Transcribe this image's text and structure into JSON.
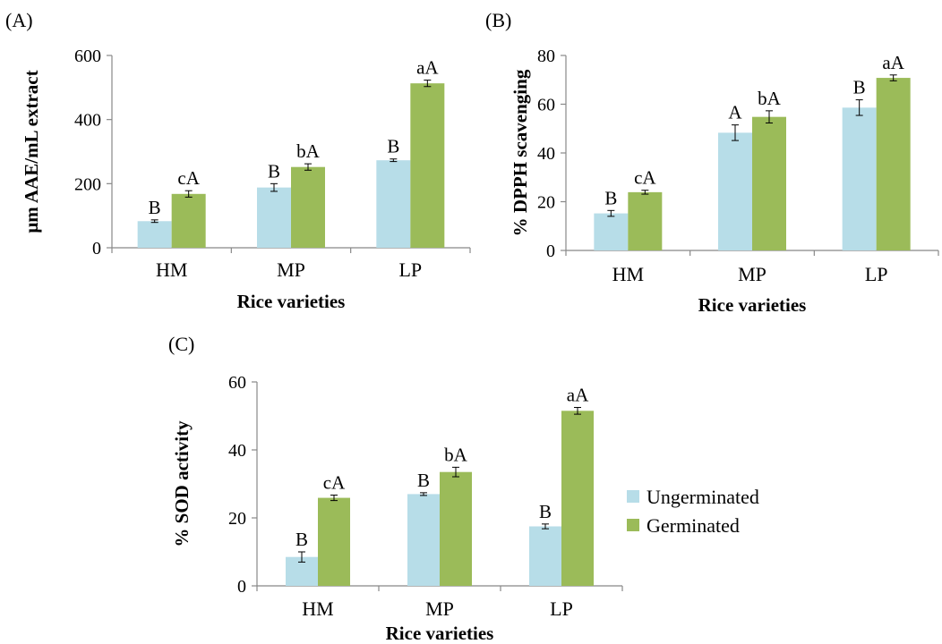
{
  "colors": {
    "ungerminated": "#b7dde8",
    "germinated": "#9bbb59",
    "axis": "#888888",
    "error_bar": "#000000"
  },
  "legend": {
    "items": [
      {
        "label": "Ungerminated",
        "color": "#b7dde8"
      },
      {
        "label": "Germinated",
        "color": "#9bbb59"
      }
    ]
  },
  "chart_data": [
    {
      "type": "bar",
      "panel": "(A)",
      "categories": [
        "HM",
        "MP",
        "LP"
      ],
      "xlabel": "Rice varieties",
      "ylabel": "μm AAE/mL extract",
      "ylim": [
        0,
        600
      ],
      "yticks": [
        0,
        200,
        400,
        600
      ],
      "series": [
        {
          "name": "Ungerminated",
          "values": [
            83,
            188,
            273
          ],
          "errors": [
            4,
            12,
            4
          ],
          "labels": [
            "B",
            "B",
            "B"
          ]
        },
        {
          "name": "Germinated",
          "values": [
            168,
            252,
            513
          ],
          "errors": [
            10,
            10,
            10
          ],
          "labels": [
            "cA",
            "bA",
            "aA"
          ]
        }
      ]
    },
    {
      "type": "bar",
      "panel": "(B)",
      "categories": [
        "HM",
        "MP",
        "LP"
      ],
      "xlabel": "Rice varieties",
      "ylabel": "% DPPH scavenging",
      "ylim": [
        0,
        80
      ],
      "yticks": [
        0,
        20,
        40,
        60,
        80
      ],
      "series": [
        {
          "name": "Ungerminated",
          "values": [
            15.2,
            48.3,
            58.6
          ],
          "errors": [
            1.2,
            3.2,
            3.2
          ],
          "labels": [
            "B",
            "A",
            "B"
          ]
        },
        {
          "name": "Germinated",
          "values": [
            23.9,
            54.8,
            70.8
          ],
          "errors": [
            0.8,
            2.5,
            1.2
          ],
          "labels": [
            "cA",
            "bA",
            "aA"
          ]
        }
      ]
    },
    {
      "type": "bar",
      "panel": "(C)",
      "categories": [
        "HM",
        "MP",
        "LP"
      ],
      "xlabel": "Rice varieties",
      "ylabel": "% SOD activity",
      "ylim": [
        0,
        60
      ],
      "yticks": [
        0,
        20,
        40,
        60
      ],
      "series": [
        {
          "name": "Ungerminated",
          "values": [
            8.5,
            27.0,
            17.5
          ],
          "errors": [
            1.5,
            0.4,
            0.7
          ],
          "labels": [
            "B",
            "B",
            "B"
          ]
        },
        {
          "name": "Germinated",
          "values": [
            25.9,
            33.5,
            51.5
          ],
          "errors": [
            0.8,
            1.4,
            1.0
          ],
          "labels": [
            "cA",
            "bA",
            "aA"
          ]
        }
      ]
    }
  ]
}
